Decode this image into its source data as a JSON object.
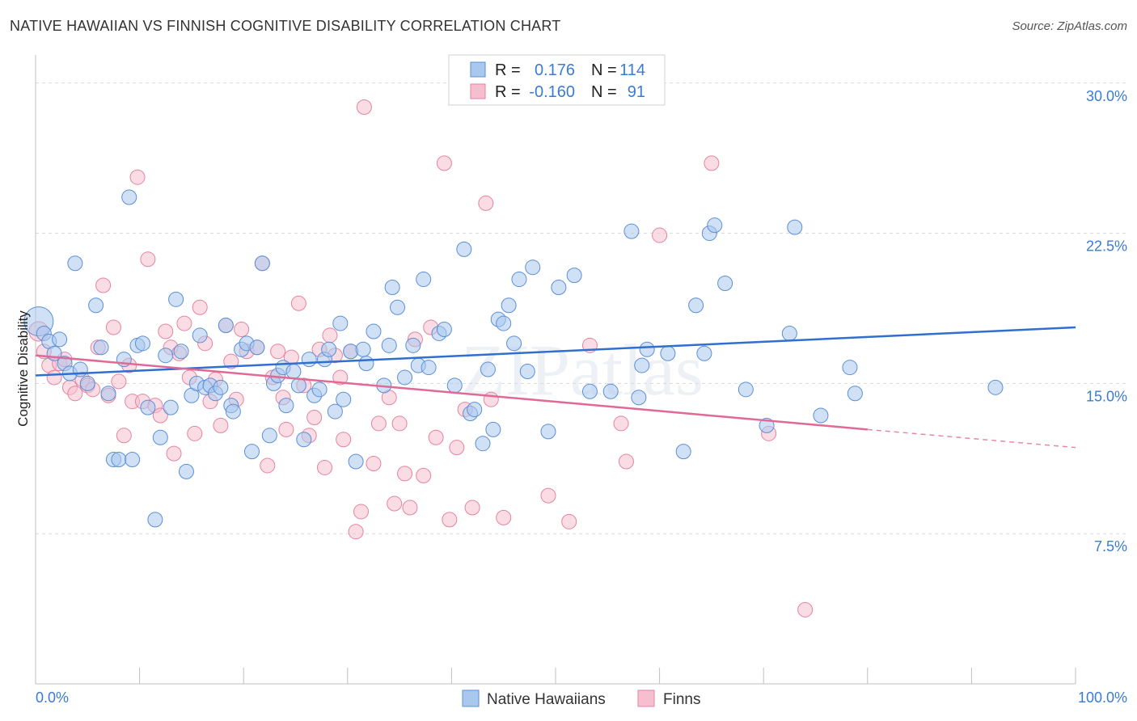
{
  "header": {
    "title": "NATIVE HAWAIIAN VS FINNISH COGNITIVE DISABILITY CORRELATION CHART",
    "source": "Source: ZipAtlas.com"
  },
  "watermark": "ZIPatlas",
  "colors": {
    "blue_fill": "#a9c8ee",
    "blue_stroke": "#5b8fd6",
    "blue_line": "#2f6fcf",
    "pink_fill": "#f6bfd0",
    "pink_stroke": "#e6839f",
    "pink_line": "#e06a95",
    "axis_text": "#3a7bd5"
  },
  "legend": {
    "rows": [
      {
        "r_label": "R =",
        "r_value": "0.176",
        "n_label": "N =",
        "n_value": "114"
      },
      {
        "r_label": "R =",
        "r_value": "-0.160",
        "n_label": "N =",
        "n_value": "91"
      }
    ]
  },
  "bottom_legend": [
    "Native Hawaiians",
    "Finns"
  ],
  "chart_data": {
    "type": "scatter",
    "title": "NATIVE HAWAIIAN VS FINNISH COGNITIVE DISABILITY CORRELATION CHART",
    "ylabel": "Cognitive Disability",
    "xlabel": "",
    "xlim": [
      0,
      100
    ],
    "ylim": [
      0,
      31
    ],
    "x_tick_labels": [
      "0.0%",
      "100.0%"
    ],
    "y_ticks": [
      7.5,
      15.0,
      22.5,
      30.0
    ],
    "y_tick_labels": [
      "7.5%",
      "15.0%",
      "22.5%",
      "30.0%"
    ],
    "grid": "horizontal dashed",
    "legend_position": "top-center",
    "series": [
      {
        "name": "Native Hawaiians",
        "r": 0.176,
        "n": 114,
        "trend": {
          "x": [
            0,
            100
          ],
          "y": [
            15.4,
            17.8
          ]
        },
        "points": [
          [
            0.3,
            18.1
          ],
          [
            0.8,
            17.5
          ],
          [
            1.3,
            17.1
          ],
          [
            1.8,
            16.5
          ],
          [
            2.3,
            17.2
          ],
          [
            2.8,
            16.0
          ],
          [
            3.3,
            15.5
          ],
          [
            3.8,
            21.0
          ],
          [
            4.3,
            15.7
          ],
          [
            5.0,
            15.0
          ],
          [
            5.8,
            18.9
          ],
          [
            6.3,
            16.8
          ],
          [
            7.0,
            14.5
          ],
          [
            7.5,
            11.2
          ],
          [
            8.0,
            11.2
          ],
          [
            8.5,
            16.2
          ],
          [
            9.0,
            24.3
          ],
          [
            9.3,
            11.2
          ],
          [
            9.8,
            16.9
          ],
          [
            10.3,
            17.0
          ],
          [
            10.8,
            13.8
          ],
          [
            11.5,
            8.2
          ],
          [
            12.0,
            12.3
          ],
          [
            12.5,
            16.4
          ],
          [
            13.0,
            13.8
          ],
          [
            13.5,
            19.2
          ],
          [
            14.0,
            16.6
          ],
          [
            14.5,
            10.6
          ],
          [
            15.0,
            14.4
          ],
          [
            15.5,
            15.0
          ],
          [
            15.8,
            17.4
          ],
          [
            16.3,
            14.8
          ],
          [
            16.8,
            14.9
          ],
          [
            17.3,
            14.5
          ],
          [
            17.8,
            14.8
          ],
          [
            18.3,
            17.9
          ],
          [
            18.8,
            13.9
          ],
          [
            19.0,
            13.6
          ],
          [
            19.8,
            16.7
          ],
          [
            20.3,
            17.0
          ],
          [
            20.8,
            11.6
          ],
          [
            21.3,
            16.8
          ],
          [
            21.8,
            21.0
          ],
          [
            22.5,
            12.4
          ],
          [
            22.9,
            15.0
          ],
          [
            23.3,
            15.4
          ],
          [
            23.8,
            15.8
          ],
          [
            24.1,
            13.9
          ],
          [
            24.8,
            15.6
          ],
          [
            25.3,
            14.9
          ],
          [
            25.8,
            12.2
          ],
          [
            26.3,
            16.2
          ],
          [
            26.8,
            14.4
          ],
          [
            27.3,
            14.7
          ],
          [
            27.8,
            16.2
          ],
          [
            28.2,
            16.7
          ],
          [
            28.8,
            13.6
          ],
          [
            29.3,
            18.0
          ],
          [
            29.6,
            14.2
          ],
          [
            30.3,
            16.6
          ],
          [
            30.8,
            11.1
          ],
          [
            31.5,
            16.7
          ],
          [
            31.8,
            16.0
          ],
          [
            32.5,
            17.6
          ],
          [
            33.5,
            14.9
          ],
          [
            34.0,
            16.9
          ],
          [
            34.3,
            19.8
          ],
          [
            34.8,
            18.8
          ],
          [
            35.5,
            15.3
          ],
          [
            36.3,
            16.9
          ],
          [
            36.8,
            15.9
          ],
          [
            37.3,
            20.2
          ],
          [
            37.8,
            15.8
          ],
          [
            38.8,
            17.5
          ],
          [
            39.3,
            17.7
          ],
          [
            40.3,
            14.9
          ],
          [
            41.2,
            21.7
          ],
          [
            41.8,
            13.5
          ],
          [
            42.2,
            13.7
          ],
          [
            43.0,
            12.0
          ],
          [
            43.5,
            15.7
          ],
          [
            44.0,
            12.7
          ],
          [
            44.5,
            18.2
          ],
          [
            45.0,
            18.0
          ],
          [
            45.5,
            18.9
          ],
          [
            46.0,
            17.0
          ],
          [
            46.5,
            20.2
          ],
          [
            47.3,
            15.6
          ],
          [
            47.8,
            20.8
          ],
          [
            49.3,
            12.6
          ],
          [
            50.3,
            19.8
          ],
          [
            51.8,
            20.4
          ],
          [
            53.3,
            14.6
          ],
          [
            55.3,
            14.6
          ],
          [
            57.3,
            22.6
          ],
          [
            58.0,
            14.3
          ],
          [
            58.3,
            15.9
          ],
          [
            58.8,
            16.7
          ],
          [
            60.8,
            16.5
          ],
          [
            62.3,
            11.6
          ],
          [
            63.5,
            18.9
          ],
          [
            64.3,
            16.5
          ],
          [
            64.8,
            22.5
          ],
          [
            65.3,
            22.9
          ],
          [
            66.3,
            20.0
          ],
          [
            68.3,
            14.7
          ],
          [
            70.3,
            12.9
          ],
          [
            72.5,
            17.5
          ],
          [
            73.0,
            22.8
          ],
          [
            75.5,
            13.4
          ],
          [
            78.3,
            15.8
          ],
          [
            78.8,
            14.5
          ],
          [
            92.3,
            14.8
          ]
        ]
      },
      {
        "name": "Finns",
        "r": -0.16,
        "n": 91,
        "trend": {
          "x": [
            0,
            80
          ],
          "y": [
            16.4,
            12.7
          ]
        },
        "trend_dashed": {
          "x": [
            80,
            100
          ],
          "y": [
            12.7,
            11.8
          ]
        },
        "points": [
          [
            0.3,
            17.6
          ],
          [
            0.8,
            16.6
          ],
          [
            1.3,
            15.9
          ],
          [
            1.8,
            15.3
          ],
          [
            2.3,
            16.0
          ],
          [
            2.8,
            16.2
          ],
          [
            3.3,
            14.8
          ],
          [
            3.8,
            14.5
          ],
          [
            4.5,
            15.2
          ],
          [
            5.0,
            14.9
          ],
          [
            5.5,
            14.7
          ],
          [
            6.0,
            16.8
          ],
          [
            6.5,
            19.9
          ],
          [
            7.0,
            14.4
          ],
          [
            7.5,
            17.8
          ],
          [
            8.0,
            15.1
          ],
          [
            8.5,
            12.4
          ],
          [
            9.0,
            15.9
          ],
          [
            9.3,
            14.1
          ],
          [
            9.8,
            25.3
          ],
          [
            10.3,
            14.1
          ],
          [
            10.8,
            21.2
          ],
          [
            11.5,
            13.9
          ],
          [
            12.0,
            13.4
          ],
          [
            12.5,
            17.6
          ],
          [
            13.0,
            16.8
          ],
          [
            13.3,
            11.5
          ],
          [
            13.8,
            16.5
          ],
          [
            14.3,
            18.0
          ],
          [
            14.8,
            15.3
          ],
          [
            15.3,
            12.5
          ],
          [
            15.8,
            18.8
          ],
          [
            16.3,
            17.0
          ],
          [
            16.8,
            14.1
          ],
          [
            17.3,
            15.2
          ],
          [
            17.8,
            12.9
          ],
          [
            18.3,
            17.9
          ],
          [
            18.8,
            16.1
          ],
          [
            19.3,
            14.2
          ],
          [
            19.8,
            17.7
          ],
          [
            20.3,
            16.6
          ],
          [
            21.3,
            16.8
          ],
          [
            21.8,
            21.0
          ],
          [
            22.3,
            10.9
          ],
          [
            22.8,
            15.3
          ],
          [
            23.3,
            16.6
          ],
          [
            23.8,
            14.3
          ],
          [
            24.1,
            12.7
          ],
          [
            24.6,
            16.3
          ],
          [
            25.3,
            19.0
          ],
          [
            25.8,
            14.9
          ],
          [
            26.3,
            12.4
          ],
          [
            26.8,
            13.3
          ],
          [
            27.3,
            16.7
          ],
          [
            27.8,
            10.8
          ],
          [
            28.3,
            17.4
          ],
          [
            28.8,
            16.4
          ],
          [
            29.3,
            15.3
          ],
          [
            29.6,
            12.2
          ],
          [
            30.3,
            16.6
          ],
          [
            30.8,
            7.6
          ],
          [
            31.3,
            8.6
          ],
          [
            31.6,
            28.8
          ],
          [
            32.5,
            11.0
          ],
          [
            33.0,
            13.0
          ],
          [
            34.0,
            14.3
          ],
          [
            34.5,
            9.0
          ],
          [
            35.0,
            13.0
          ],
          [
            35.5,
            10.5
          ],
          [
            36.0,
            8.8
          ],
          [
            36.5,
            17.2
          ],
          [
            37.3,
            10.4
          ],
          [
            38.0,
            17.8
          ],
          [
            38.5,
            12.3
          ],
          [
            39.3,
            26.0
          ],
          [
            39.8,
            8.2
          ],
          [
            40.5,
            11.8
          ],
          [
            41.3,
            13.7
          ],
          [
            42.0,
            8.8
          ],
          [
            43.3,
            24.0
          ],
          [
            43.8,
            14.2
          ],
          [
            45.0,
            8.3
          ],
          [
            49.3,
            9.4
          ],
          [
            51.3,
            8.1
          ],
          [
            53.3,
            16.9
          ],
          [
            56.3,
            13.0
          ],
          [
            56.8,
            11.1
          ],
          [
            60.0,
            22.4
          ],
          [
            65.0,
            26.0
          ],
          [
            74.0,
            3.7
          ],
          [
            70.5,
            12.5
          ]
        ]
      }
    ]
  }
}
